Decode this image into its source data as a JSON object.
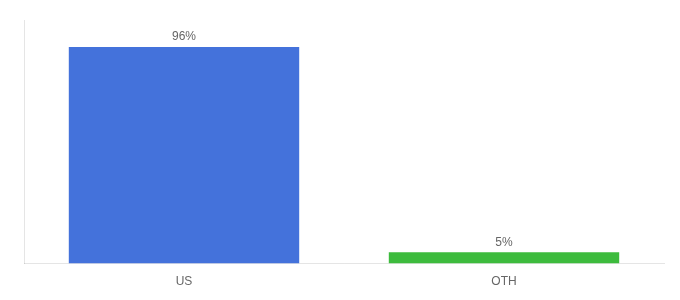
{
  "chart_data": {
    "type": "bar",
    "categories": [
      "US",
      "OTH"
    ],
    "values": [
      96,
      5
    ],
    "value_labels": [
      "96%",
      "5%"
    ],
    "colors": [
      "#4472db",
      "#3dbb3d"
    ],
    "ylim": [
      0,
      108
    ],
    "data_labels": true,
    "tick_labels": "x",
    "grid": false
  }
}
